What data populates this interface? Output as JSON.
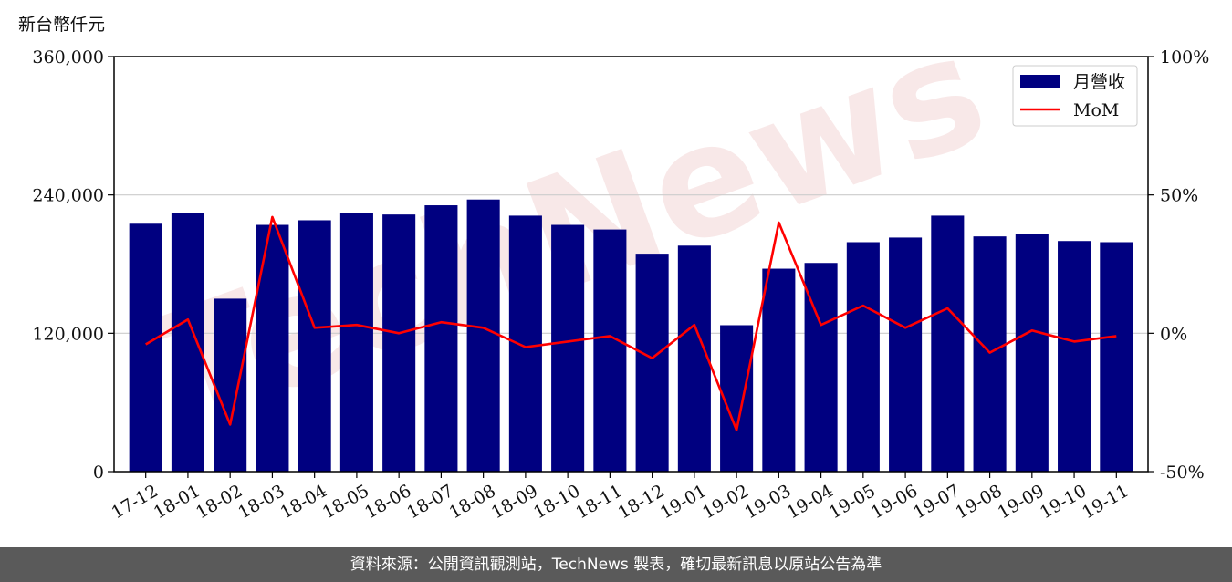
{
  "unit_label": "新台幣仟元",
  "footer_text": "資料來源：公開資訊觀測站，TechNews 製表，確切最新訊息以原站公告為準",
  "watermark_text": "TechNews",
  "chart_data": {
    "type": "bar",
    "categories": [
      "17-12",
      "18-01",
      "18-02",
      "18-03",
      "18-04",
      "18-05",
      "18-06",
      "18-07",
      "18-08",
      "18-09",
      "18-10",
      "18-11",
      "18-12",
      "19-01",
      "19-02",
      "19-03",
      "19-04",
      "19-05",
      "19-06",
      "19-07",
      "19-08",
      "19-09",
      "19-10",
      "19-11"
    ],
    "series": [
      {
        "name": "月營收",
        "type": "bar",
        "axis": "left",
        "color": "#000080",
        "values": [
          215000,
          224000,
          150000,
          214000,
          218000,
          224000,
          223000,
          231000,
          236000,
          222000,
          214000,
          210000,
          189000,
          196000,
          127000,
          176000,
          181000,
          199000,
          203000,
          222000,
          204000,
          206000,
          200000,
          199000
        ]
      },
      {
        "name": "MoM",
        "type": "line",
        "axis": "right",
        "color": "#ff0000",
        "values": [
          -4,
          5,
          -33,
          42,
          2,
          3,
          0,
          4,
          2,
          -5,
          -3,
          -1,
          -9,
          3,
          -35,
          40,
          3,
          10,
          2,
          9,
          -7,
          1,
          -3,
          -1
        ]
      }
    ],
    "ylim": [
      0,
      360000
    ],
    "yticks": [
      "0",
      "120,000",
      "240,000",
      "360,000"
    ],
    "y2lim": [
      -50,
      100
    ],
    "y2ticks": [
      "-50%",
      "0%",
      "50%",
      "100%"
    ],
    "grid": "horizontal",
    "legend": "top-right"
  }
}
